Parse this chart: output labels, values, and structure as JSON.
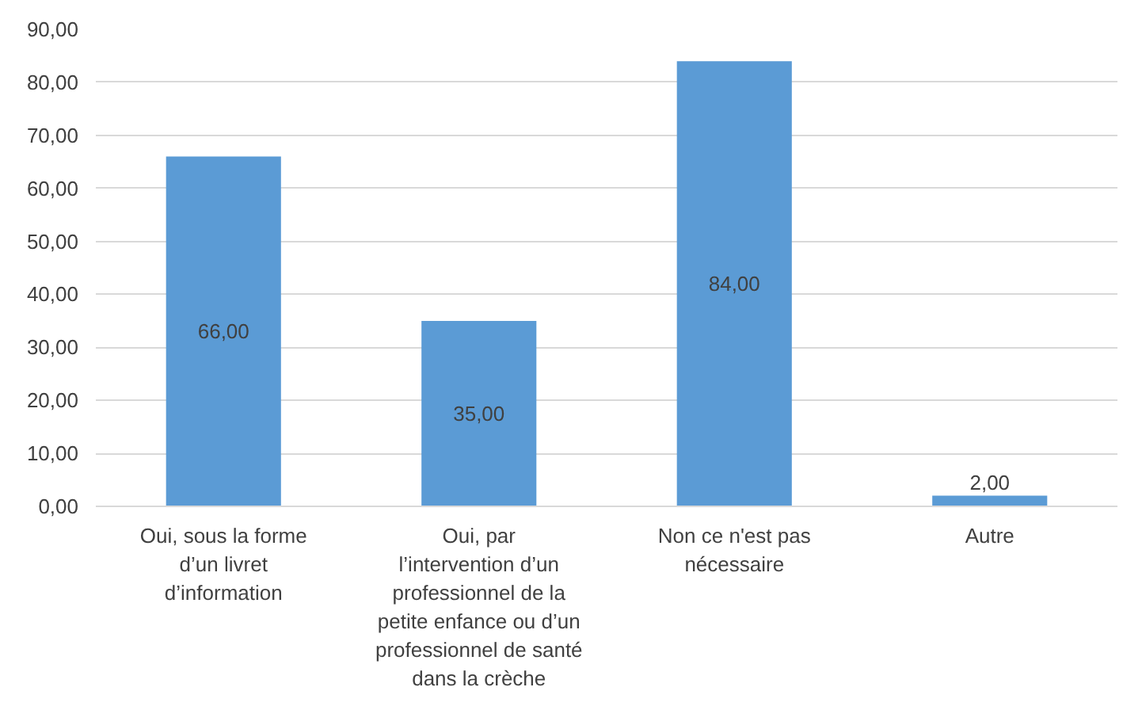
{
  "chart_data": {
    "type": "bar",
    "categories": [
      "Oui, sous la forme d’un livret d’information",
      "Oui, par l’intervention d’un professionnel de la petite enfance ou d’un professionnel de santé dans la crèche",
      "Non ce n'est pas nécessaire",
      "Autre"
    ],
    "values": [
      66,
      35,
      84,
      2
    ],
    "value_labels": [
      "66,00",
      "35,00",
      "84,00",
      "2,00"
    ],
    "color": "#5b9bd5",
    "ylim": [
      0,
      90
    ],
    "yticks": [
      {
        "value": 0,
        "label": "0,00"
      },
      {
        "value": 10,
        "label": "10,00"
      },
      {
        "value": 20,
        "label": "20,00"
      },
      {
        "value": 30,
        "label": "30,00"
      },
      {
        "value": 40,
        "label": "40,00"
      },
      {
        "value": 50,
        "label": "50,00"
      },
      {
        "value": 60,
        "label": "60,00"
      },
      {
        "value": 70,
        "label": "70,00"
      },
      {
        "value": 80,
        "label": "80,00"
      },
      {
        "value": 90,
        "label": "90,00"
      }
    ],
    "grid": "y"
  }
}
